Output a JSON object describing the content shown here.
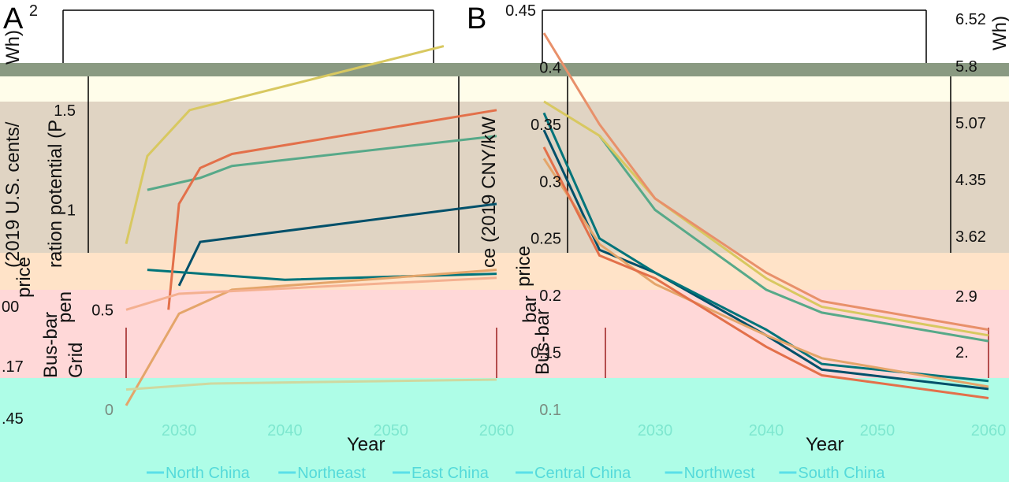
{
  "colors": {
    "north_china": "#00506a",
    "northeast": "#00747a",
    "east_china": "#57a989",
    "central_china": "#d8c860",
    "northwest": "#e4a56a",
    "south_china": "#e3704a"
  },
  "chart_data": [
    {
      "panel": "A",
      "type": "line",
      "xlabel": "Year",
      "ylabel_left_fragments": [
        "(2019 U.S. cents/",
        "ration potential (P",
        "Wh)",
        "price",
        "pen",
        "Bus-bar",
        "Grid"
      ],
      "xlim": [
        2025,
        2060
      ],
      "x_ticks": [
        "2030",
        "2040",
        "2050",
        "2060"
      ],
      "ylim": [
        0,
        2
      ],
      "y_ticks": [
        "0",
        "0.5",
        "1",
        "1.5",
        "2"
      ],
      "left_fragment_ticks": [
        "00",
        ".17",
        ".45"
      ],
      "series": [
        {
          "name": "North China",
          "x": [
            2030,
            2032,
            2060
          ],
          "y": [
            0.62,
            0.84,
            1.03
          ]
        },
        {
          "name": "Northeast",
          "x": [
            2027,
            2040,
            2060
          ],
          "y": [
            0.7,
            0.65,
            0.68
          ]
        },
        {
          "name": "East China",
          "x": [
            2027,
            2032,
            2035,
            2060
          ],
          "y": [
            1.1,
            1.16,
            1.22,
            1.37
          ]
        },
        {
          "name": "Central China",
          "x": [
            2025,
            2027,
            2031,
            2055
          ],
          "y": [
            0.83,
            1.27,
            1.5,
            1.82
          ]
        },
        {
          "name": "Northwest",
          "x": [
            2025,
            2030,
            2035,
            2060
          ],
          "y": [
            0.02,
            0.48,
            0.6,
            0.7
          ]
        },
        {
          "name": "South China",
          "x": [
            2029,
            2030,
            2032,
            2035,
            2060
          ],
          "y": [
            0.5,
            1.03,
            1.21,
            1.28,
            1.5
          ]
        },
        {
          "name": "",
          "x": [
            2025,
            2030,
            2060
          ],
          "y": [
            0.5,
            0.58,
            0.66
          ]
        },
        {
          "name": "",
          "x": [
            2025,
            2033,
            2060
          ],
          "y": [
            0.1,
            0.13,
            0.15
          ]
        }
      ]
    },
    {
      "panel": "B",
      "type": "line",
      "xlabel": "Year",
      "ylabel_left_fragments": [
        "ce (2019 CNY/kW",
        "price",
        "bar",
        "Bus-bar"
      ],
      "ylabel_right_fragments": [
        "Wh)",
        "Wh)"
      ],
      "xlim": [
        2020,
        2060
      ],
      "x_ticks": [
        "2030",
        "2040",
        "2050",
        "2060"
      ],
      "ylim": [
        0.1,
        0.45
      ],
      "y_ticks": [
        "0.1",
        "0.15",
        "0.2",
        "0.25",
        "0.3",
        "0.35",
        "0.4",
        "0.45"
      ],
      "y2_ticks": [
        "2.",
        "2.9",
        "3.62",
        "4.35",
        "5.07",
        "5.8",
        "6.52"
      ],
      "series": [
        {
          "name": "North China",
          "x": [
            2020,
            2025,
            2030,
            2040,
            2045,
            2060
          ],
          "y": [
            0.345,
            0.24,
            0.22,
            0.165,
            0.135,
            0.118
          ]
        },
        {
          "name": "Northeast",
          "x": [
            2020,
            2025,
            2030,
            2040,
            2045,
            2060
          ],
          "y": [
            0.36,
            0.25,
            0.22,
            0.17,
            0.14,
            0.125
          ]
        },
        {
          "name": "East China",
          "x": [
            2025,
            2030,
            2040,
            2045,
            2060
          ],
          "y": [
            0.34,
            0.275,
            0.205,
            0.185,
            0.16
          ]
        },
        {
          "name": "Central China",
          "x": [
            2020,
            2025,
            2030,
            2040,
            2045,
            2060
          ],
          "y": [
            0.37,
            0.34,
            0.285,
            0.215,
            0.19,
            0.165
          ]
        },
        {
          "name": "Northwest",
          "x": [
            2020,
            2025,
            2030,
            2040,
            2045,
            2060
          ],
          "y": [
            0.32,
            0.245,
            0.21,
            0.165,
            0.145,
            0.12
          ]
        },
        {
          "name": "South China",
          "x": [
            2020,
            2025,
            2030,
            2040,
            2045,
            2060
          ],
          "y": [
            0.33,
            0.235,
            0.215,
            0.155,
            0.13,
            0.11
          ]
        },
        {
          "name": "",
          "x": [
            2020,
            2025,
            2030,
            2040,
            2045,
            2060
          ],
          "y": [
            0.43,
            0.35,
            0.285,
            0.22,
            0.195,
            0.17
          ]
        }
      ]
    }
  ],
  "legend": {
    "items": [
      "North China",
      "Northeast",
      "East China",
      "Central China",
      "Northwest",
      "South China"
    ]
  }
}
